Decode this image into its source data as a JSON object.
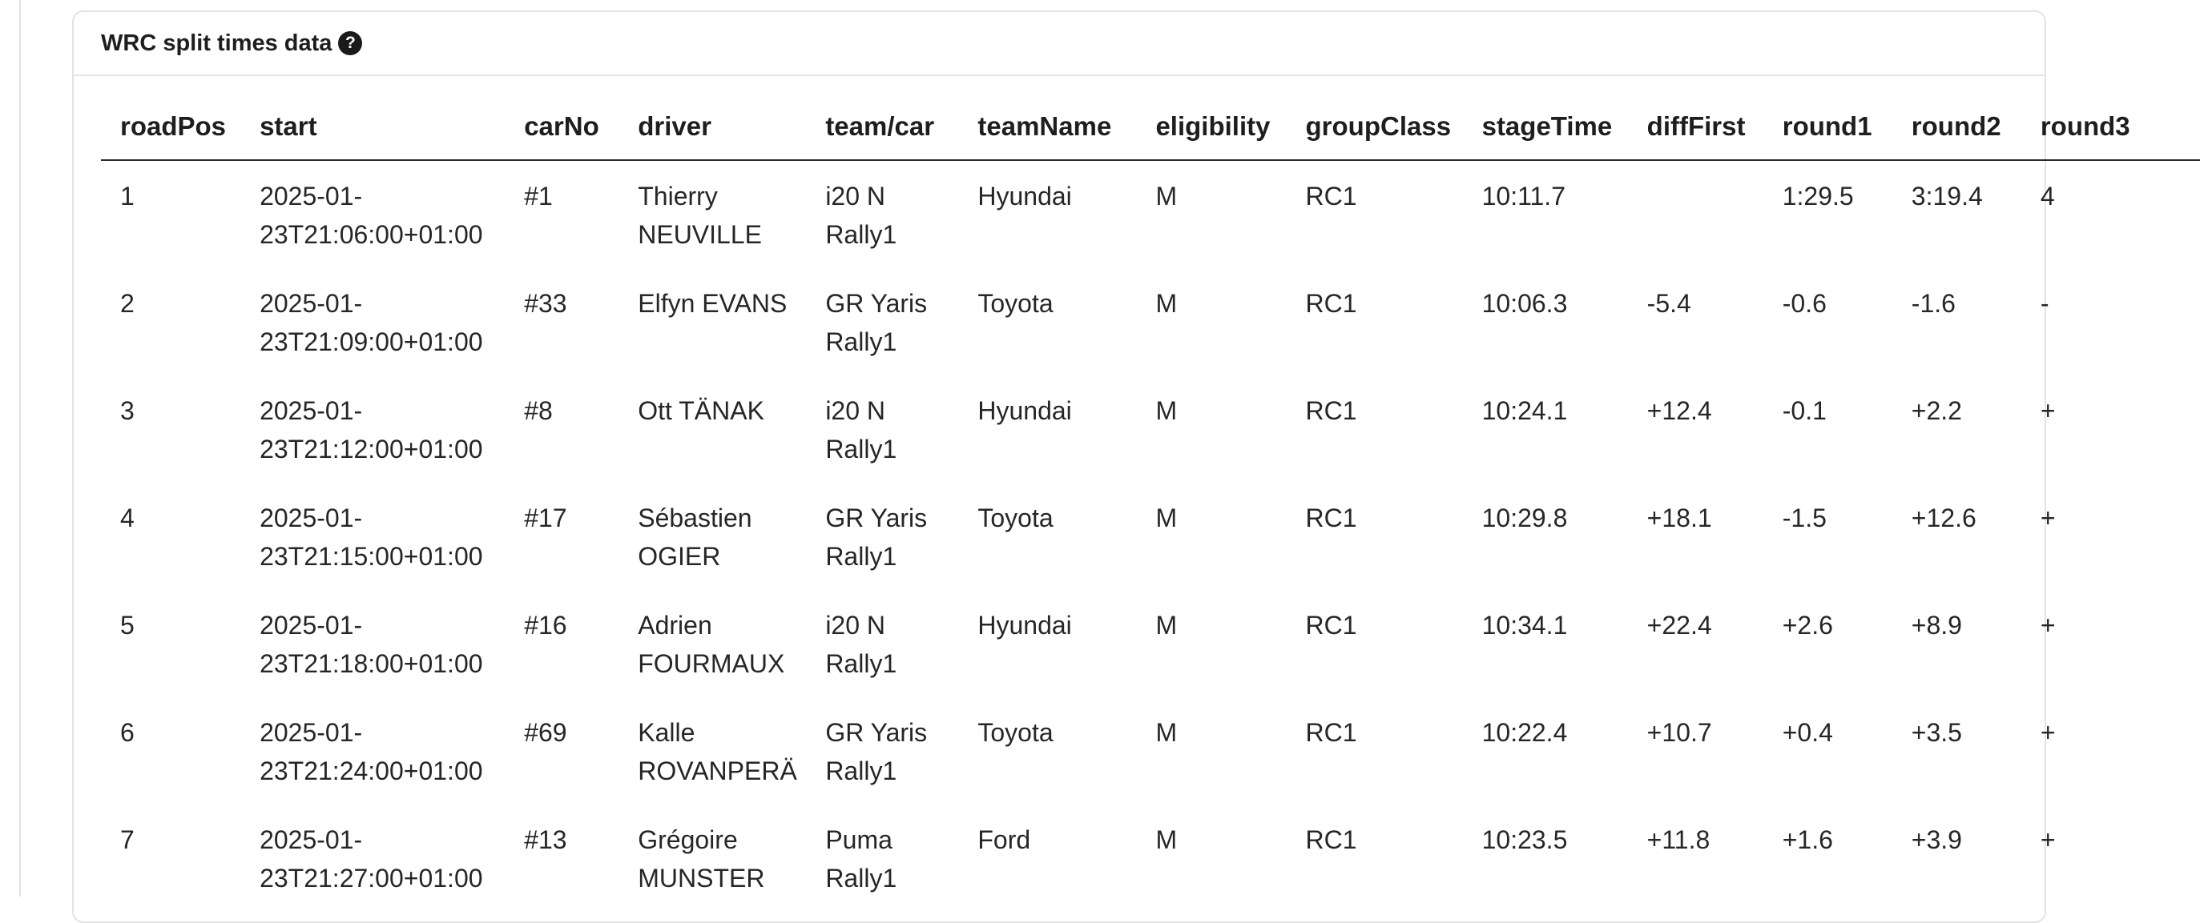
{
  "panel": {
    "title": "WRC split times data",
    "help_glyph": "?"
  },
  "table": {
    "columns": [
      "roadPos",
      "start",
      "carNo",
      "driver",
      "team/car",
      "teamName",
      "eligibility",
      "groupClass",
      "stageTime",
      "diffFirst",
      "round1",
      "round2",
      "round3"
    ],
    "rows": [
      {
        "roadPos": "1",
        "start": [
          "2025-01-",
          "23T21:06:00+01:00"
        ],
        "carNo": "#1",
        "driver": [
          "Thierry",
          "NEUVILLE"
        ],
        "teamCar": [
          "i20 N",
          "Rally1"
        ],
        "teamName": "Hyundai",
        "eligibility": "M",
        "groupClass": "RC1",
        "stageTime": "10:11.7",
        "diffFirst": "",
        "round1": "1:29.5",
        "round2": "3:19.4",
        "round3": "4"
      },
      {
        "roadPos": "2",
        "start": [
          "2025-01-",
          "23T21:09:00+01:00"
        ],
        "carNo": "#33",
        "driver": [
          "Elfyn EVANS"
        ],
        "teamCar": [
          "GR Yaris",
          "Rally1"
        ],
        "teamName": "Toyota",
        "eligibility": "M",
        "groupClass": "RC1",
        "stageTime": "10:06.3",
        "diffFirst": "-5.4",
        "round1": "-0.6",
        "round2": "-1.6",
        "round3": "-"
      },
      {
        "roadPos": "3",
        "start": [
          "2025-01-",
          "23T21:12:00+01:00"
        ],
        "carNo": "#8",
        "driver": [
          "Ott TÄNAK"
        ],
        "teamCar": [
          "i20 N",
          "Rally1"
        ],
        "teamName": "Hyundai",
        "eligibility": "M",
        "groupClass": "RC1",
        "stageTime": "10:24.1",
        "diffFirst": "+12.4",
        "round1": "-0.1",
        "round2": "+2.2",
        "round3": "+"
      },
      {
        "roadPos": "4",
        "start": [
          "2025-01-",
          "23T21:15:00+01:00"
        ],
        "carNo": "#17",
        "driver": [
          "Sébastien",
          "OGIER"
        ],
        "teamCar": [
          "GR Yaris",
          "Rally1"
        ],
        "teamName": "Toyota",
        "eligibility": "M",
        "groupClass": "RC1",
        "stageTime": "10:29.8",
        "diffFirst": "+18.1",
        "round1": "-1.5",
        "round2": "+12.6",
        "round3": "+"
      },
      {
        "roadPos": "5",
        "start": [
          "2025-01-",
          "23T21:18:00+01:00"
        ],
        "carNo": "#16",
        "driver": [
          "Adrien",
          "FOURMAUX"
        ],
        "teamCar": [
          "i20 N",
          "Rally1"
        ],
        "teamName": "Hyundai",
        "eligibility": "M",
        "groupClass": "RC1",
        "stageTime": "10:34.1",
        "diffFirst": "+22.4",
        "round1": "+2.6",
        "round2": "+8.9",
        "round3": "+"
      },
      {
        "roadPos": "6",
        "start": [
          "2025-01-",
          "23T21:24:00+01:00"
        ],
        "carNo": "#69",
        "driver": [
          "Kalle",
          "ROVANPERÄ"
        ],
        "teamCar": [
          "GR Yaris",
          "Rally1"
        ],
        "teamName": "Toyota",
        "eligibility": "M",
        "groupClass": "RC1",
        "stageTime": "10:22.4",
        "diffFirst": "+10.7",
        "round1": "+0.4",
        "round2": "+3.5",
        "round3": "+"
      },
      {
        "roadPos": "7",
        "start": [
          "2025-01-",
          "23T21:27:00+01:00"
        ],
        "carNo": "#13",
        "driver": [
          "Grégoire",
          "MUNSTER"
        ],
        "teamCar": [
          "Puma",
          "Rally1"
        ],
        "teamName": "Ford",
        "eligibility": "M",
        "groupClass": "RC1",
        "stageTime": "10:23.5",
        "diffFirst": "+11.8",
        "round1": "+1.6",
        "round2": "+3.9",
        "round3": "+"
      }
    ]
  }
}
